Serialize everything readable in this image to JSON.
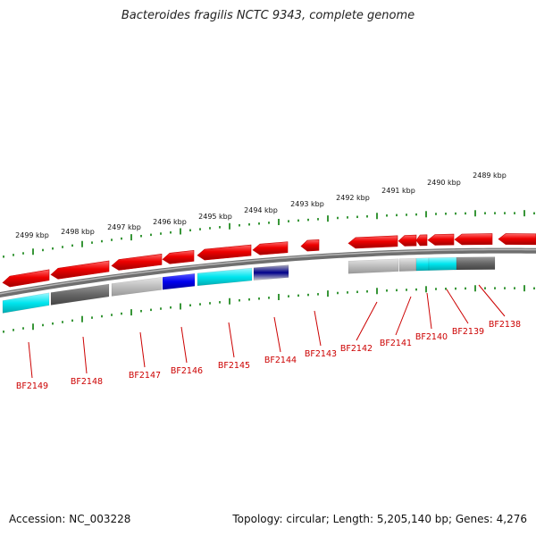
{
  "title": "Bacteroides fragilis NCTC 9343, complete genome",
  "footer": {
    "accession": "Accession: NC_003228",
    "summary": "Topology: circular; Length: 5,205,140 bp; Genes: 4,276"
  },
  "kbp_labels": [
    "2489 kbp",
    "2490 kbp",
    "2491 kbp",
    "2492 kbp",
    "2493 kbp",
    "2494 kbp",
    "2495 kbp",
    "2496 kbp",
    "2497 kbp",
    "2498 kbp",
    "2499 kbp"
  ],
  "gene_labels": [
    "BF2149",
    "BF2148",
    "BF2147",
    "BF2146",
    "BF2145",
    "BF2144",
    "BF2143",
    "BF2142",
    "BF2141",
    "BF2140",
    "BF2139",
    "BF2138"
  ],
  "colors": {
    "backbone": "#8a8a8a",
    "ticks": "#228b22",
    "cds": "#ee0000",
    "label": "#cc0000",
    "cyan": "#00e5ee",
    "dark_gray": "#666666",
    "light_gray": "#bdbdbd",
    "blue": "#0000ee",
    "navy": "#00008b"
  }
}
